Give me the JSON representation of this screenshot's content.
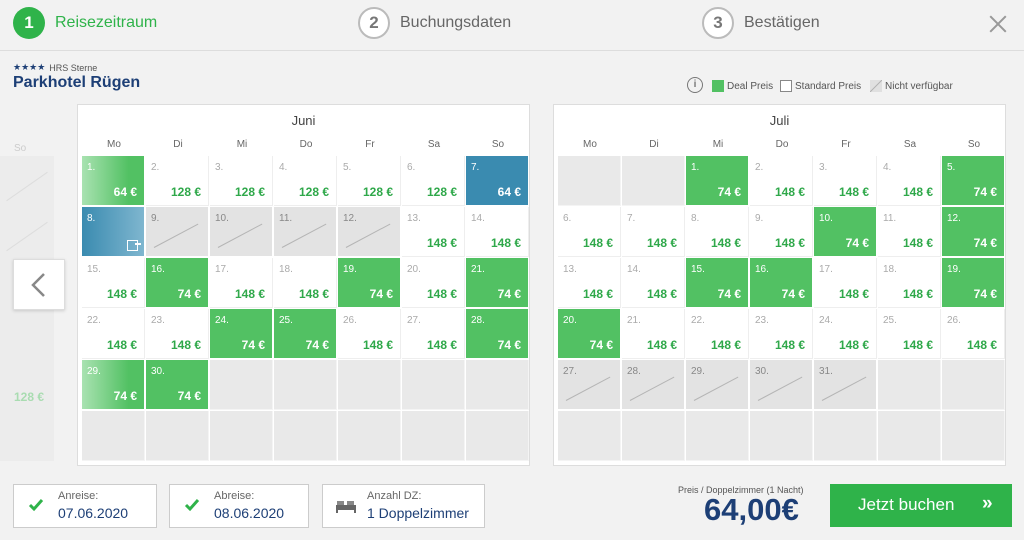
{
  "steps": [
    {
      "number": "1",
      "label": "Reisezeitraum",
      "active": true
    },
    {
      "number": "2",
      "label": "Buchungsdaten",
      "active": false
    },
    {
      "number": "3",
      "label": "Bestätigen",
      "active": false
    }
  ],
  "hotel": {
    "stars": "★★★★",
    "stars_label": "HRS Sterne",
    "name": "Parkhotel Rügen"
  },
  "legend": {
    "info": "i",
    "deal": "Deal Preis",
    "standard": "Standard Preis",
    "unavailable": "Nicht verfügbar",
    "colors": {
      "deal": "#52c163",
      "standard": "#ffffff",
      "unavailable": "#e0e0e0",
      "selected": "#3a8bb0"
    }
  },
  "peek": {
    "dow": "So",
    "price": "128 €"
  },
  "weekdays": [
    "Mo",
    "Di",
    "Mi",
    "Do",
    "Fr",
    "Sa",
    "So"
  ],
  "months": [
    {
      "title": "Juni",
      "start_offset": 0,
      "days": [
        {
          "d": "1.",
          "p": "64 €",
          "s": "deal-fade"
        },
        {
          "d": "2.",
          "p": "128 €",
          "s": "standard"
        },
        {
          "d": "3.",
          "p": "128 €",
          "s": "standard"
        },
        {
          "d": "4.",
          "p": "128 €",
          "s": "standard"
        },
        {
          "d": "5.",
          "p": "128 €",
          "s": "standard"
        },
        {
          "d": "6.",
          "p": "128 €",
          "s": "standard"
        },
        {
          "d": "7.",
          "p": "64 €",
          "s": "selected"
        },
        {
          "d": "8.",
          "p": "",
          "s": "selected-fade",
          "checkout": true
        },
        {
          "d": "9.",
          "p": "",
          "s": "unavail"
        },
        {
          "d": "10.",
          "p": "",
          "s": "unavail"
        },
        {
          "d": "11.",
          "p": "",
          "s": "unavail"
        },
        {
          "d": "12.",
          "p": "",
          "s": "unavail"
        },
        {
          "d": "13.",
          "p": "148 €",
          "s": "standard"
        },
        {
          "d": "14.",
          "p": "148 €",
          "s": "standard"
        },
        {
          "d": "15.",
          "p": "148 €",
          "s": "standard"
        },
        {
          "d": "16.",
          "p": "74 €",
          "s": "deal"
        },
        {
          "d": "17.",
          "p": "148 €",
          "s": "standard"
        },
        {
          "d": "18.",
          "p": "148 €",
          "s": "standard"
        },
        {
          "d": "19.",
          "p": "74 €",
          "s": "deal"
        },
        {
          "d": "20.",
          "p": "148 €",
          "s": "standard"
        },
        {
          "d": "21.",
          "p": "74 €",
          "s": "deal"
        },
        {
          "d": "22.",
          "p": "148 €",
          "s": "standard"
        },
        {
          "d": "23.",
          "p": "148 €",
          "s": "standard"
        },
        {
          "d": "24.",
          "p": "74 €",
          "s": "deal"
        },
        {
          "d": "25.",
          "p": "74 €",
          "s": "deal"
        },
        {
          "d": "26.",
          "p": "148 €",
          "s": "standard"
        },
        {
          "d": "27.",
          "p": "148 €",
          "s": "standard"
        },
        {
          "d": "28.",
          "p": "74 €",
          "s": "deal"
        },
        {
          "d": "29.",
          "p": "74 €",
          "s": "deal-fade"
        },
        {
          "d": "30.",
          "p": "74 €",
          "s": "deal"
        }
      ]
    },
    {
      "title": "Juli",
      "start_offset": 2,
      "days": [
        {
          "d": "1.",
          "p": "74 €",
          "s": "deal"
        },
        {
          "d": "2.",
          "p": "148 €",
          "s": "standard"
        },
        {
          "d": "3.",
          "p": "148 €",
          "s": "standard"
        },
        {
          "d": "4.",
          "p": "148 €",
          "s": "standard"
        },
        {
          "d": "5.",
          "p": "74 €",
          "s": "deal"
        },
        {
          "d": "6.",
          "p": "148 €",
          "s": "standard"
        },
        {
          "d": "7.",
          "p": "148 €",
          "s": "standard"
        },
        {
          "d": "8.",
          "p": "148 €",
          "s": "standard"
        },
        {
          "d": "9.",
          "p": "148 €",
          "s": "standard"
        },
        {
          "d": "10.",
          "p": "74 €",
          "s": "deal"
        },
        {
          "d": "11.",
          "p": "148 €",
          "s": "standard"
        },
        {
          "d": "12.",
          "p": "74 €",
          "s": "deal"
        },
        {
          "d": "13.",
          "p": "148 €",
          "s": "standard"
        },
        {
          "d": "14.",
          "p": "148 €",
          "s": "standard"
        },
        {
          "d": "15.",
          "p": "74 €",
          "s": "deal"
        },
        {
          "d": "16.",
          "p": "74 €",
          "s": "deal"
        },
        {
          "d": "17.",
          "p": "148 €",
          "s": "standard"
        },
        {
          "d": "18.",
          "p": "148 €",
          "s": "standard"
        },
        {
          "d": "19.",
          "p": "74 €",
          "s": "deal"
        },
        {
          "d": "20.",
          "p": "74 €",
          "s": "deal"
        },
        {
          "d": "21.",
          "p": "148 €",
          "s": "standard"
        },
        {
          "d": "22.",
          "p": "148 €",
          "s": "standard"
        },
        {
          "d": "23.",
          "p": "148 €",
          "s": "standard"
        },
        {
          "d": "24.",
          "p": "148 €",
          "s": "standard"
        },
        {
          "d": "25.",
          "p": "148 €",
          "s": "standard"
        },
        {
          "d": "26.",
          "p": "148 €",
          "s": "standard"
        },
        {
          "d": "27.",
          "p": "",
          "s": "unavail"
        },
        {
          "d": "28.",
          "p": "",
          "s": "unavail"
        },
        {
          "d": "29.",
          "p": "",
          "s": "unavail"
        },
        {
          "d": "30.",
          "p": "",
          "s": "unavail"
        },
        {
          "d": "31.",
          "p": "",
          "s": "unavail"
        }
      ]
    }
  ],
  "summary": {
    "arrival_label": "Anreise:",
    "arrival_value": "07.06.2020",
    "departure_label": "Abreise:",
    "departure_value": "08.06.2020",
    "rooms_label": "Anzahl DZ:",
    "rooms_value": "1 Doppelzimmer"
  },
  "price": {
    "caption": "Preis / Doppelzimmer (1 Nacht)",
    "amount": "64,00€"
  },
  "book_button": {
    "label": "Jetzt buchen",
    "arrow": "»"
  }
}
